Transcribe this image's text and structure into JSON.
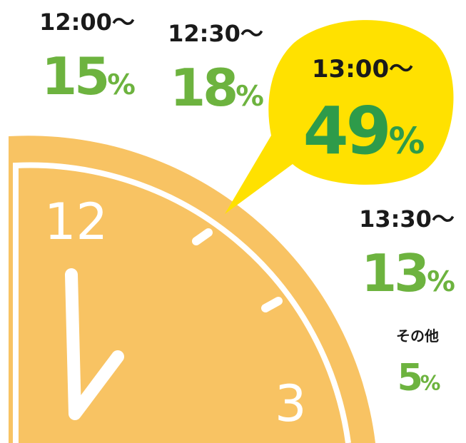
{
  "items": [
    {
      "label": "12:00〜",
      "value": 15,
      "unit": "%"
    },
    {
      "label": "12:30〜",
      "value": 18,
      "unit": "%"
    },
    {
      "label": "13:00〜",
      "value": 49,
      "unit": "%"
    },
    {
      "label": "13:30〜",
      "value": 13,
      "unit": "%"
    },
    {
      "label": "その他",
      "value": 5,
      "unit": "%"
    }
  ]
}
